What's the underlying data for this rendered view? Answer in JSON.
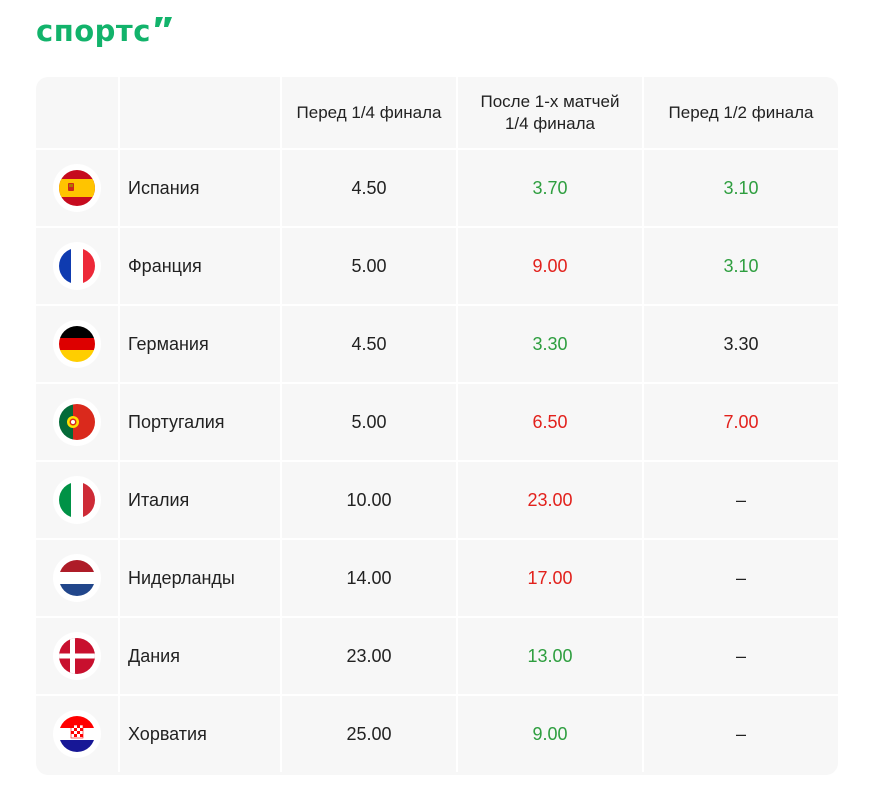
{
  "logo": {
    "text": "спортс"
  },
  "colors": {
    "brand": "#12b36b",
    "up": "#2e9e3f",
    "down": "#e2211c",
    "neutral": "#222222"
  },
  "table": {
    "headers": {
      "col1": "Перед 1/4 финала",
      "col2_line1": "После 1-х матчей",
      "col2_line2": "1/4 финала",
      "col3": "Перед 1/2 финала"
    },
    "rows": [
      {
        "team": "Испания",
        "flag": "spain-flag-icon",
        "v1": "4.50",
        "v2": "3.70",
        "v2_trend": "green",
        "v3": "3.10",
        "v3_trend": "green"
      },
      {
        "team": "Франция",
        "flag": "france-flag-icon",
        "v1": "5.00",
        "v2": "9.00",
        "v2_trend": "red",
        "v3": "3.10",
        "v3_trend": "green"
      },
      {
        "team": "Германия",
        "flag": "germany-flag-icon",
        "v1": "4.50",
        "v2": "3.30",
        "v2_trend": "green",
        "v3": "3.30",
        "v3_trend": "neutral"
      },
      {
        "team": "Португалия",
        "flag": "portugal-flag-icon",
        "v1": "5.00",
        "v2": "6.50",
        "v2_trend": "red",
        "v3": "7.00",
        "v3_trend": "red"
      },
      {
        "team": "Италия",
        "flag": "italy-flag-icon",
        "v1": "10.00",
        "v2": "23.00",
        "v2_trend": "red",
        "v3": "–",
        "v3_trend": "neutral"
      },
      {
        "team": "Нидерланды",
        "flag": "netherlands-flag-icon",
        "v1": "14.00",
        "v2": "17.00",
        "v2_trend": "red",
        "v3": "–",
        "v3_trend": "neutral"
      },
      {
        "team": "Дания",
        "flag": "denmark-flag-icon",
        "v1": "23.00",
        "v2": "13.00",
        "v2_trend": "green",
        "v3": "–",
        "v3_trend": "neutral"
      },
      {
        "team": "Хорватия",
        "flag": "croatia-flag-icon",
        "v1": "25.00",
        "v2": "9.00",
        "v2_trend": "green",
        "v3": "–",
        "v3_trend": "neutral"
      }
    ]
  }
}
